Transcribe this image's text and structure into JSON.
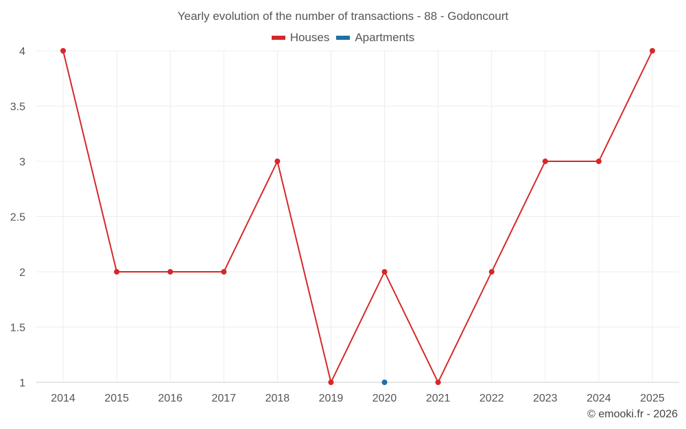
{
  "chart_data": {
    "type": "line",
    "title": "Yearly evolution of the number of transactions - 88 - Godoncourt",
    "x": [
      "2014",
      "2015",
      "2016",
      "2017",
      "2018",
      "2019",
      "2020",
      "2021",
      "2022",
      "2023",
      "2024",
      "2025"
    ],
    "series": [
      {
        "name": "Houses",
        "color": "#d62728",
        "values": [
          4,
          2,
          2,
          2,
          3,
          1,
          2,
          1,
          2,
          3,
          3,
          4
        ]
      },
      {
        "name": "Apartments",
        "color": "#1f6fa8",
        "values": [
          null,
          null,
          null,
          null,
          null,
          null,
          1,
          null,
          null,
          null,
          null,
          null
        ]
      }
    ],
    "ylim": [
      1,
      4
    ],
    "yticks": [
      "1",
      "1.5",
      "2",
      "2.5",
      "3",
      "3.5",
      "4"
    ],
    "grid": true,
    "legend": "top-center"
  },
  "credit": "© emooki.fr - 2026"
}
